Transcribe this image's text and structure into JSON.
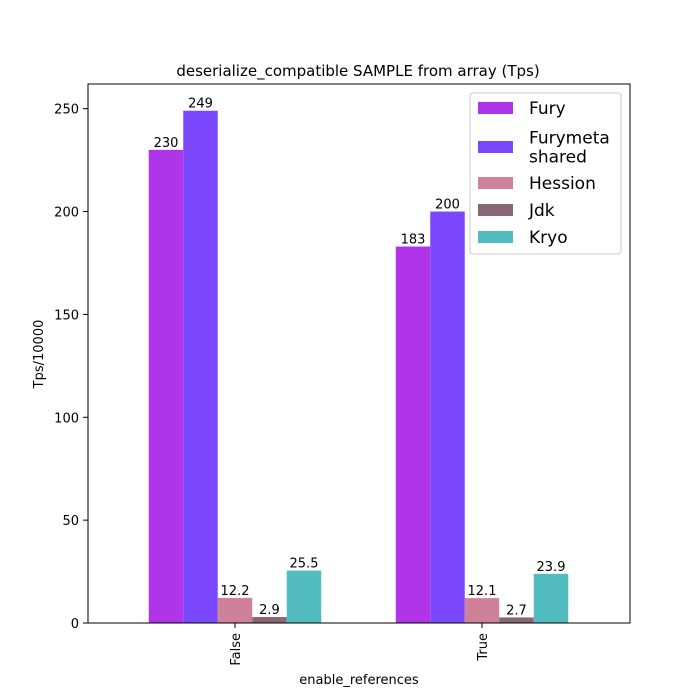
{
  "chart_data": {
    "type": "bar",
    "title": "deserialize_compatible SAMPLE from array (Tps)",
    "xlabel": "enable_references",
    "ylabel": "Tps/10000",
    "categories": [
      "False",
      "True"
    ],
    "ylim": [
      0,
      262
    ],
    "yticks": [
      0,
      50,
      100,
      150,
      200,
      250
    ],
    "grid": false,
    "legend_position": "top-right",
    "series": [
      {
        "name": "Fury",
        "color": "#b035e8",
        "values": [
          230,
          183
        ],
        "labels": [
          "230",
          "183"
        ]
      },
      {
        "name": "Furymeta\nshared",
        "color": "#7b47fd",
        "values": [
          249,
          200
        ],
        "labels": [
          "249",
          "200"
        ]
      },
      {
        "name": "Hession",
        "color": "#cf8199",
        "values": [
          12.2,
          12.1
        ],
        "labels": [
          "12.2",
          "12.1"
        ]
      },
      {
        "name": "Jdk",
        "color": "#8a6774",
        "values": [
          2.9,
          2.7
        ],
        "labels": [
          "2.9",
          "2.7"
        ]
      },
      {
        "name": "Kryo",
        "color": "#52bcc0",
        "values": [
          25.5,
          23.9
        ],
        "labels": [
          "25.5",
          "23.9"
        ]
      }
    ]
  }
}
